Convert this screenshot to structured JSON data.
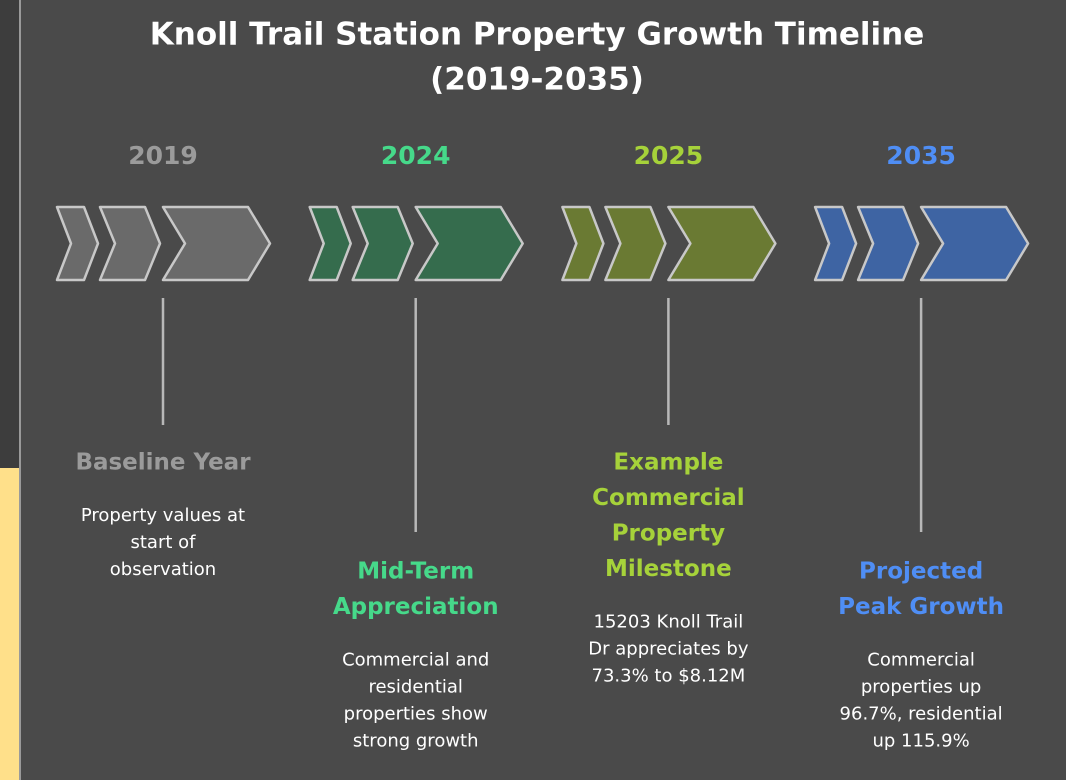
{
  "title": [
    "Knoll Trail Station Property Growth Timeline",
    "(2019-2035)"
  ],
  "milestones": [
    {
      "year": "2019",
      "color": "#9b9b9b",
      "title": [
        "Baseline Year"
      ],
      "description": [
        "Property values at",
        "start of",
        "observation"
      ]
    },
    {
      "year": "2024",
      "color": "#46d98a",
      "title": [
        "Mid-Term",
        "Appreciation"
      ],
      "description": [
        "Commercial and",
        "residential",
        "properties show",
        "strong growth"
      ]
    },
    {
      "year": "2025",
      "color": "#a6d23a",
      "title": [
        "Example",
        "Commercial",
        "Property",
        "Milestone"
      ],
      "description": [
        "15203 Knoll Trail",
        "Dr appreciates by",
        "73.3% to $8.12M"
      ]
    },
    {
      "year": "2035",
      "color": "#4f8ef5",
      "title": [
        "Projected",
        "Peak Growth"
      ],
      "description": [
        "Commercial",
        "properties up",
        "96.7%, residential",
        "up 115.9%"
      ]
    }
  ]
}
